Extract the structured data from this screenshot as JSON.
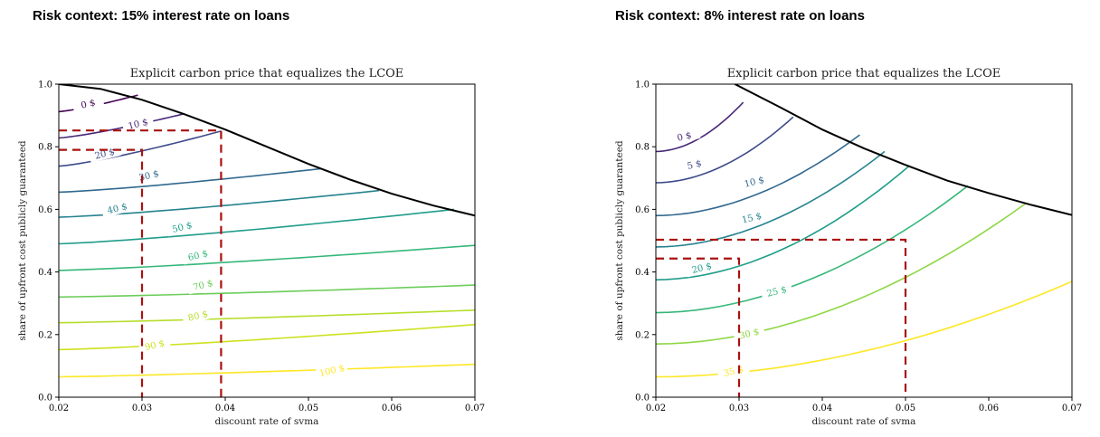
{
  "panels": [
    {
      "heading": "Risk context: 15% interest rate on loans"
    },
    {
      "heading": "Risk context: 8% interest rate on loans"
    }
  ],
  "chart_data": [
    {
      "type": "line",
      "title": "Explicit carbon price that equalizes the LCOE",
      "xlabel": "discount rate of svma",
      "ylabel": "share of upfront cost publicly guaranteed",
      "xlim": [
        0.02,
        0.07
      ],
      "ylim": [
        0.0,
        1.0
      ],
      "xticks": [
        "0.02",
        "0.03",
        "0.04",
        "0.05",
        "0.06",
        "0.07"
      ],
      "yticks": [
        "0.0",
        "0.2",
        "0.4",
        "0.6",
        "0.8",
        "1.0"
      ],
      "grid": false,
      "boundary": {
        "x": [
          0.02,
          0.025,
          0.03,
          0.035,
          0.04,
          0.045,
          0.05,
          0.055,
          0.06,
          0.065,
          0.07
        ],
        "y": [
          1.0,
          0.985,
          0.95,
          0.905,
          0.855,
          0.8,
          0.745,
          0.695,
          0.65,
          0.612,
          0.58
        ]
      },
      "contours": [
        {
          "label": "0 $",
          "color": "#440154",
          "x": [
            0.02,
            0.0295
          ],
          "y": [
            0.912,
            0.965
          ],
          "label_at": [
            0.0235,
            0.939
          ]
        },
        {
          "label": "10 $",
          "color": "#482878",
          "x": [
            0.02,
            0.035
          ],
          "y": [
            0.828,
            0.905
          ],
          "label_at": [
            0.0295,
            0.875
          ]
        },
        {
          "label": "20 $",
          "color": "#3e4a89",
          "x": [
            0.02,
            0.0395
          ],
          "y": [
            0.738,
            0.85
          ],
          "label_at": [
            0.0255,
            0.78
          ]
        },
        {
          "label": "30 $",
          "color": "#31688e",
          "x": [
            0.02,
            0.0515
          ],
          "y": [
            0.655,
            0.73
          ],
          "label_at": [
            0.0308,
            0.71
          ]
        },
        {
          "label": "40 $",
          "color": "#26838f",
          "x": [
            0.02,
            0.0585
          ],
          "y": [
            0.575,
            0.66
          ],
          "label_at": [
            0.027,
            0.605
          ]
        },
        {
          "label": "50 $",
          "color": "#1f9d8a",
          "x": [
            0.02,
            0.0675
          ],
          "y": [
            0.49,
            0.6
          ],
          "label_at": [
            0.0348,
            0.545
          ]
        },
        {
          "label": "60 $",
          "color": "#35b779",
          "x": [
            0.02,
            0.07
          ],
          "y": [
            0.405,
            0.485
          ],
          "label_at": [
            0.0367,
            0.455
          ]
        },
        {
          "label": "70 $",
          "color": "#6ccd5a",
          "x": [
            0.02,
            0.07
          ],
          "y": [
            0.32,
            0.358
          ],
          "label_at": [
            0.0373,
            0.36
          ]
        },
        {
          "label": "80 $",
          "color": "#b5de2b",
          "x": [
            0.02,
            0.07
          ],
          "y": [
            0.238,
            0.278
          ],
          "label_at": [
            0.0367,
            0.262
          ]
        },
        {
          "label": "90 $",
          "color": "#cde11d",
          "x": [
            0.02,
            0.07
          ],
          "y": [
            0.152,
            0.232
          ],
          "label_at": [
            0.0315,
            0.168
          ]
        },
        {
          "label": "100 $",
          "color": "#fde725",
          "x": [
            0.02,
            0.07
          ],
          "y": [
            0.065,
            0.105
          ],
          "label_at": [
            0.0528,
            0.087
          ]
        }
      ],
      "reference_lines": [
        {
          "x": 0.03,
          "y": 0.79
        },
        {
          "x": 0.0395,
          "y": 0.852
        }
      ]
    },
    {
      "type": "line",
      "title": "Explicit carbon price that equalizes the LCOE",
      "xlabel": "discount rate of svma",
      "ylabel": "share of upfront cost publicly guaranteed",
      "xlim": [
        0.02,
        0.07
      ],
      "ylim": [
        0.0,
        1.0
      ],
      "xticks": [
        "0.02",
        "0.03",
        "0.04",
        "0.05",
        "0.06",
        "0.07"
      ],
      "yticks": [
        "0.0",
        "0.2",
        "0.4",
        "0.6",
        "0.8",
        "1.0"
      ],
      "grid": false,
      "boundary": {
        "x": [
          0.0295,
          0.035,
          0.04,
          0.045,
          0.05,
          0.055,
          0.06,
          0.065,
          0.07
        ],
        "y": [
          1.0,
          0.925,
          0.855,
          0.795,
          0.742,
          0.692,
          0.652,
          0.615,
          0.582
        ]
      },
      "contours": [
        {
          "label": "0 $",
          "color": "#482878",
          "x": [
            0.02,
            0.0305
          ],
          "y": [
            0.785,
            0.942
          ],
          "label_at": [
            0.0234,
            0.835
          ]
        },
        {
          "label": "5 $",
          "color": "#3e4a89",
          "x": [
            0.02,
            0.0365
          ],
          "y": [
            0.685,
            0.895
          ],
          "label_at": [
            0.0246,
            0.745
          ]
        },
        {
          "label": "10 $",
          "color": "#31688e",
          "x": [
            0.02,
            0.0445
          ],
          "y": [
            0.58,
            0.838
          ],
          "label_at": [
            0.0318,
            0.69
          ]
        },
        {
          "label": "15 $",
          "color": "#26838f",
          "x": [
            0.02,
            0.0475
          ],
          "y": [
            0.48,
            0.785
          ],
          "label_at": [
            0.0315,
            0.575
          ]
        },
        {
          "label": "20 $",
          "color": "#1f9d8a",
          "x": [
            0.02,
            0.0505
          ],
          "y": [
            0.375,
            0.74
          ],
          "label_at": [
            0.0255,
            0.415
          ]
        },
        {
          "label": "25 $",
          "color": "#35b779",
          "x": [
            0.02,
            0.0575
          ],
          "y": [
            0.27,
            0.675
          ],
          "label_at": [
            0.0345,
            0.34
          ]
        },
        {
          "label": "30 $",
          "color": "#8fd744",
          "x": [
            0.02,
            0.0645
          ],
          "y": [
            0.17,
            0.62
          ],
          "label_at": [
            0.0312,
            0.205
          ]
        },
        {
          "label": "35 $",
          "color": "#fde725",
          "x": [
            0.02,
            0.07
          ],
          "y": [
            0.065,
            0.37
          ],
          "label_at": [
            0.0293,
            0.085
          ]
        }
      ],
      "reference_lines": [
        {
          "x": 0.03,
          "y": 0.443
        },
        {
          "x": 0.05,
          "y": 0.503
        }
      ]
    }
  ]
}
